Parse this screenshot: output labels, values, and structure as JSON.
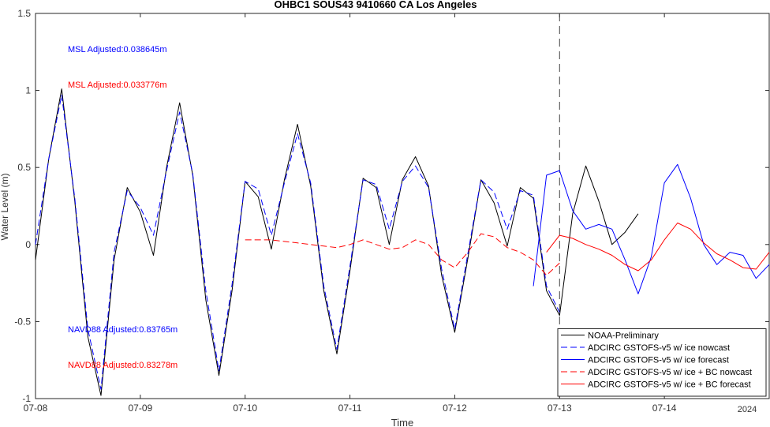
{
  "chart_data": {
    "type": "line",
    "title": "OHBC1 SOUS43 9410660 CA Los Angeles",
    "xlabel": "Time",
    "ylabel": "Water Level (m)",
    "year_label": "2024",
    "xlim": [
      "07-08 00:00",
      "07-14 24:00"
    ],
    "ylim": [
      -1,
      1.5
    ],
    "yticks": [
      -1,
      -0.5,
      0,
      0.5,
      1,
      1.5
    ],
    "ytick_labels": [
      "-1",
      "-0.5",
      "0",
      "0.5",
      "1",
      "1.5"
    ],
    "xtick_labels": [
      "07-08",
      "07-09",
      "07-10",
      "07-11",
      "07-12",
      "07-13",
      "07-14"
    ],
    "grid": false,
    "nowcast_forecast_divider": "07-13 00:00",
    "legend_position": "bottom-right",
    "annotations": [
      {
        "text": "MSL Adjusted:0.038645m",
        "color": "#0000ff",
        "y": 1.27
      },
      {
        "text": "MSL Adjusted:0.033776m",
        "color": "#ff0000",
        "y": 1.04
      },
      {
        "text": "NAVD88 Adjusted:0.83765m",
        "color": "#0000ff",
        "y": -0.55
      },
      {
        "text": "NAVD88 Adjusted:0.83278m",
        "color": "#ff0000",
        "y": -0.78
      }
    ],
    "series": [
      {
        "name": "NOAA-Preliminary",
        "color": "#000000",
        "dash": "solid",
        "x": [
          "07-08 00:00",
          "07-08 03:00",
          "07-08 06:00",
          "07-08 09:00",
          "07-08 12:00",
          "07-08 15:00",
          "07-08 18:00",
          "07-08 21:00",
          "07-09 00:00",
          "07-09 03:00",
          "07-09 06:00",
          "07-09 09:00",
          "07-09 12:00",
          "07-09 15:00",
          "07-09 18:00",
          "07-09 21:00",
          "07-10 00:00",
          "07-10 03:00",
          "07-10 06:00",
          "07-10 09:00",
          "07-10 12:00",
          "07-10 15:00",
          "07-10 18:00",
          "07-10 21:00",
          "07-11 00:00",
          "07-11 03:00",
          "07-11 06:00",
          "07-11 09:00",
          "07-11 12:00",
          "07-11 15:00",
          "07-11 18:00",
          "07-11 21:00",
          "07-12 00:00",
          "07-12 03:00",
          "07-12 06:00",
          "07-12 09:00",
          "07-12 12:00",
          "07-12 15:00",
          "07-12 18:00",
          "07-12 21:00",
          "07-13 00:00",
          "07-13 03:00",
          "07-13 06:00",
          "07-13 09:00",
          "07-13 12:00",
          "07-13 15:00",
          "07-13 18:00"
        ],
        "y": [
          -0.1,
          0.55,
          1.01,
          0.28,
          -0.6,
          -0.98,
          -0.1,
          0.37,
          0.21,
          -0.07,
          0.5,
          0.92,
          0.45,
          -0.36,
          -0.85,
          -0.3,
          0.41,
          0.31,
          -0.03,
          0.42,
          0.78,
          0.38,
          -0.3,
          -0.71,
          -0.17,
          0.43,
          0.37,
          0.0,
          0.42,
          0.57,
          0.38,
          -0.2,
          -0.57,
          -0.09,
          0.42,
          0.27,
          -0.01,
          0.37,
          0.3,
          -0.3,
          -0.46,
          0.2,
          0.51,
          0.28,
          0.0,
          0.08,
          0.2
        ]
      },
      {
        "name": "ADCIRC GSTOFS-v5 w/ ice nowcast",
        "color": "#0000ff",
        "dash": "dashed",
        "x": [
          "07-08 00:00",
          "07-08 03:00",
          "07-08 06:00",
          "07-08 09:00",
          "07-08 12:00",
          "07-08 15:00",
          "07-08 18:00",
          "07-08 21:00",
          "07-09 00:00",
          "07-09 03:00",
          "07-09 06:00",
          "07-09 09:00",
          "07-09 12:00",
          "07-09 15:00",
          "07-09 18:00",
          "07-09 21:00",
          "07-10 00:00",
          "07-10 03:00",
          "07-10 06:00",
          "07-10 09:00",
          "07-10 12:00",
          "07-10 15:00",
          "07-10 18:00",
          "07-10 21:00",
          "07-11 00:00",
          "07-11 03:00",
          "07-11 06:00",
          "07-11 09:00",
          "07-11 12:00",
          "07-11 15:00",
          "07-11 18:00",
          "07-11 21:00",
          "07-12 00:00",
          "07-12 03:00",
          "07-12 06:00",
          "07-12 09:00",
          "07-12 12:00",
          "07-12 15:00",
          "07-12 18:00",
          "07-12 21:00",
          "07-13 00:00"
        ],
        "y": [
          0.0,
          0.55,
          0.97,
          0.3,
          -0.55,
          -0.94,
          -0.05,
          0.35,
          0.24,
          0.06,
          0.48,
          0.86,
          0.46,
          -0.3,
          -0.82,
          -0.26,
          0.41,
          0.36,
          0.06,
          0.4,
          0.72,
          0.4,
          -0.27,
          -0.68,
          -0.14,
          0.42,
          0.39,
          0.1,
          0.41,
          0.51,
          0.37,
          -0.16,
          -0.55,
          -0.06,
          0.42,
          0.34,
          0.1,
          0.35,
          0.32,
          -0.27,
          -0.44
        ]
      },
      {
        "name": "ADCIRC GSTOFS-v5 w/ ice forecast",
        "color": "#0000ff",
        "dash": "solid",
        "x": [
          "07-12 18:00",
          "07-12 21:00",
          "07-13 00:00",
          "07-13 03:00",
          "07-13 06:00",
          "07-13 09:00",
          "07-13 12:00",
          "07-13 15:00",
          "07-13 18:00",
          "07-13 21:00",
          "07-14 00:00",
          "07-14 03:00",
          "07-14 06:00",
          "07-14 09:00",
          "07-14 12:00",
          "07-14 15:00",
          "07-14 18:00",
          "07-14 21:00",
          "07-14 24:00"
        ],
        "y": [
          -0.27,
          0.45,
          0.48,
          0.22,
          0.1,
          0.13,
          0.1,
          -0.1,
          -0.32,
          -0.08,
          0.4,
          0.52,
          0.3,
          0.0,
          -0.13,
          -0.05,
          -0.07,
          -0.22,
          -0.13
        ]
      },
      {
        "name": "ADCIRC GSTOFS-v5 w/ ice + BC nowcast",
        "color": "#ff0000",
        "dash": "dashed",
        "x": [
          "07-10 00:00",
          "07-10 03:00",
          "07-10 06:00",
          "07-10 09:00",
          "07-10 12:00",
          "07-10 15:00",
          "07-10 18:00",
          "07-10 21:00",
          "07-11 00:00",
          "07-11 03:00",
          "07-11 06:00",
          "07-11 09:00",
          "07-11 12:00",
          "07-11 15:00",
          "07-11 18:00",
          "07-11 21:00",
          "07-12 00:00",
          "07-12 03:00",
          "07-12 06:00",
          "07-12 09:00",
          "07-12 12:00",
          "07-12 15:00",
          "07-12 18:00",
          "07-12 21:00",
          "07-13 00:00"
        ],
        "y": [
          0.03,
          0.03,
          0.03,
          0.02,
          0.01,
          0.0,
          -0.01,
          -0.02,
          0.0,
          0.03,
          0.0,
          -0.03,
          -0.02,
          0.03,
          0.0,
          -0.1,
          -0.15,
          -0.05,
          0.07,
          0.05,
          -0.02,
          -0.05,
          -0.1,
          -0.2,
          -0.12
        ]
      },
      {
        "name": "ADCIRC GSTOFS-v5 w/ ice + BC forecast",
        "color": "#ff0000",
        "dash": "solid",
        "x": [
          "07-12 21:00",
          "07-13 00:00",
          "07-13 03:00",
          "07-13 06:00",
          "07-13 09:00",
          "07-13 12:00",
          "07-13 15:00",
          "07-13 18:00",
          "07-13 21:00",
          "07-14 00:00",
          "07-14 03:00",
          "07-14 06:00",
          "07-14 09:00",
          "07-14 12:00",
          "07-14 15:00",
          "07-14 18:00",
          "07-14 21:00",
          "07-14 24:00"
        ],
        "y": [
          -0.05,
          0.06,
          0.04,
          0.0,
          -0.03,
          -0.07,
          -0.13,
          -0.17,
          -0.1,
          0.03,
          0.14,
          0.1,
          0.01,
          -0.06,
          -0.1,
          -0.15,
          -0.16,
          -0.05
        ]
      }
    ]
  }
}
